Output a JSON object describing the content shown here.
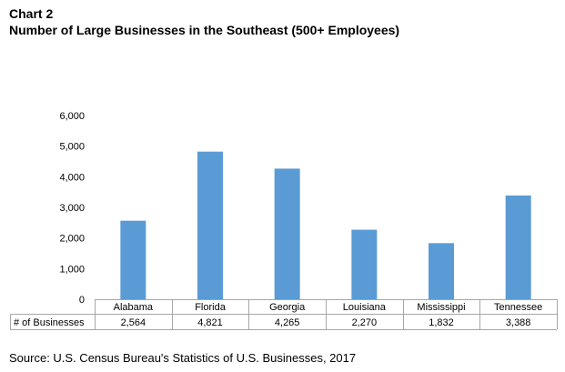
{
  "header": {
    "chart_label": "Chart 2",
    "title": "Number of Large Businesses in the Southeast (500+ Employees)"
  },
  "chart_data": {
    "type": "bar",
    "title": "Number of Large Businesses in the Southeast (500+ Employees)",
    "categories": [
      "Alabama",
      "Florida",
      "Georgia",
      "Louisiana",
      "Mississippi",
      "Tennessee"
    ],
    "series": [
      {
        "name": "# of Businesses",
        "values": [
          2564,
          4821,
          4265,
          2270,
          1832,
          3388
        ],
        "color": "#5b9bd5"
      }
    ],
    "table_values": [
      "2,564",
      "4,821",
      "4,265",
      "2,270",
      "1,832",
      "3,388"
    ],
    "y_ticks": [
      "0",
      "1,000",
      "2,000",
      "3,000",
      "4,000",
      "5,000",
      "6,000"
    ],
    "ylim": [
      0,
      6000
    ],
    "xlabel": "",
    "ylabel": "",
    "grid": false,
    "legend": "data-table"
  },
  "footer": {
    "source": "Source: U.S. Census Bureau's Statistics of U.S. Businesses, 2017"
  }
}
